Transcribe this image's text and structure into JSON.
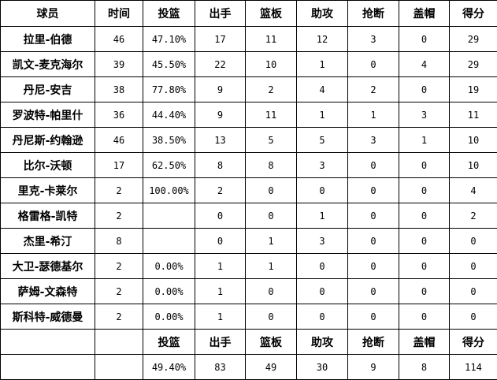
{
  "headers": [
    "球员",
    "时间",
    "投篮",
    "出手",
    "篮板",
    "助攻",
    "抢断",
    "盖帽",
    "得分"
  ],
  "rows": [
    [
      "拉里-伯德",
      "46",
      "47.10%",
      "17",
      "11",
      "12",
      "3",
      "0",
      "29"
    ],
    [
      "凯文-麦克海尔",
      "39",
      "45.50%",
      "22",
      "10",
      "1",
      "0",
      "4",
      "29"
    ],
    [
      "丹尼-安吉",
      "38",
      "77.80%",
      "9",
      "2",
      "4",
      "2",
      "0",
      "19"
    ],
    [
      "罗波特-帕里什",
      "36",
      "44.40%",
      "9",
      "11",
      "1",
      "1",
      "3",
      "11"
    ],
    [
      "丹尼斯-约翰逊",
      "46",
      "38.50%",
      "13",
      "5",
      "5",
      "3",
      "1",
      "10"
    ],
    [
      "比尔-沃顿",
      "17",
      "62.50%",
      "8",
      "8",
      "3",
      "0",
      "0",
      "10"
    ],
    [
      "里克-卡莱尔",
      "2",
      "100.00%",
      "2",
      "0",
      "0",
      "0",
      "0",
      "4"
    ],
    [
      "格雷格-凯特",
      "2",
      "",
      "0",
      "0",
      "1",
      "0",
      "0",
      "2"
    ],
    [
      "杰里-希汀",
      "8",
      "",
      "0",
      "1",
      "3",
      "0",
      "0",
      "0"
    ],
    [
      "大卫-瑟德基尔",
      "2",
      "0.00%",
      "1",
      "1",
      "0",
      "0",
      "0",
      "0"
    ],
    [
      "萨姆-文森特",
      "2",
      "0.00%",
      "1",
      "0",
      "0",
      "0",
      "0",
      "0"
    ],
    [
      "斯科特-威德曼",
      "2",
      "0.00%",
      "1",
      "0",
      "0",
      "0",
      "0",
      "0"
    ]
  ],
  "totals_headers": [
    "",
    "",
    "投篮",
    "出手",
    "篮板",
    "助攻",
    "抢断",
    "盖帽",
    "得分"
  ],
  "totals": [
    "",
    "",
    "49.40%",
    "83",
    "49",
    "30",
    "9",
    "8",
    "114"
  ]
}
